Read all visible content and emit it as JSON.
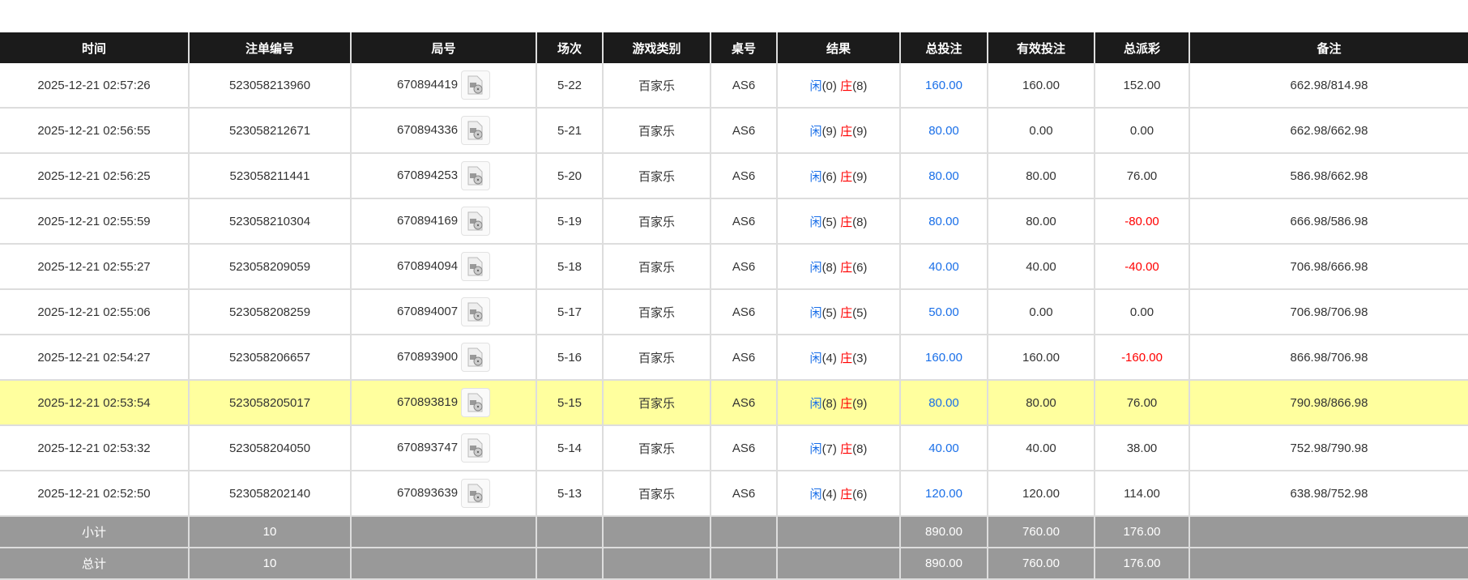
{
  "headers": [
    "时间",
    "注单编号",
    "局号",
    "场次",
    "游戏类别",
    "桌号",
    "结果",
    "总投注",
    "有效投注",
    "总派彩",
    "备注"
  ],
  "rows": [
    {
      "time": "2025-12-21 02:57:26",
      "bet_no": "523058213960",
      "round": "670894419",
      "session": "5-22",
      "game": "百家乐",
      "table": "AS6",
      "player_label": "闲",
      "player": "(0)",
      "banker_label": "庄",
      "banker": "(8)",
      "total_bet": "160.00",
      "valid_bet": "160.00",
      "payout": "152.00",
      "payout_negative": false,
      "note": "662.98/814.98"
    },
    {
      "time": "2025-12-21 02:56:55",
      "bet_no": "523058212671",
      "round": "670894336",
      "session": "5-21",
      "game": "百家乐",
      "table": "AS6",
      "player_label": "闲",
      "player": "(9)",
      "banker_label": "庄",
      "banker": "(9)",
      "total_bet": "80.00",
      "valid_bet": "0.00",
      "payout": "0.00",
      "payout_negative": false,
      "note": "662.98/662.98"
    },
    {
      "time": "2025-12-21 02:56:25",
      "bet_no": "523058211441",
      "round": "670894253",
      "session": "5-20",
      "game": "百家乐",
      "table": "AS6",
      "player_label": "闲",
      "player": "(6)",
      "banker_label": "庄",
      "banker": "(9)",
      "total_bet": "80.00",
      "valid_bet": "80.00",
      "payout": "76.00",
      "payout_negative": false,
      "note": "586.98/662.98"
    },
    {
      "time": "2025-12-21 02:55:59",
      "bet_no": "523058210304",
      "round": "670894169",
      "session": "5-19",
      "game": "百家乐",
      "table": "AS6",
      "player_label": "闲",
      "player": "(5)",
      "banker_label": "庄",
      "banker": "(8)",
      "total_bet": "80.00",
      "valid_bet": "80.00",
      "payout": "-80.00",
      "payout_negative": true,
      "note": "666.98/586.98"
    },
    {
      "time": "2025-12-21 02:55:27",
      "bet_no": "523058209059",
      "round": "670894094",
      "session": "5-18",
      "game": "百家乐",
      "table": "AS6",
      "player_label": "闲",
      "player": "(8)",
      "banker_label": "庄",
      "banker": "(6)",
      "total_bet": "40.00",
      "valid_bet": "40.00",
      "payout": "-40.00",
      "payout_negative": true,
      "note": "706.98/666.98"
    },
    {
      "time": "2025-12-21 02:55:06",
      "bet_no": "523058208259",
      "round": "670894007",
      "session": "5-17",
      "game": "百家乐",
      "table": "AS6",
      "player_label": "闲",
      "player": "(5)",
      "banker_label": "庄",
      "banker": "(5)",
      "total_bet": "50.00",
      "valid_bet": "0.00",
      "payout": "0.00",
      "payout_negative": false,
      "note": "706.98/706.98"
    },
    {
      "time": "2025-12-21 02:54:27",
      "bet_no": "523058206657",
      "round": "670893900",
      "session": "5-16",
      "game": "百家乐",
      "table": "AS6",
      "player_label": "闲",
      "player": "(4)",
      "banker_label": "庄",
      "banker": "(3)",
      "total_bet": "160.00",
      "valid_bet": "160.00",
      "payout": "-160.00",
      "payout_negative": true,
      "note": "866.98/706.98"
    },
    {
      "time": "2025-12-21 02:53:54",
      "bet_no": "523058205017",
      "round": "670893819",
      "session": "5-15",
      "game": "百家乐",
      "table": "AS6",
      "player_label": "闲",
      "player": "(8)",
      "banker_label": "庄",
      "banker": "(9)",
      "total_bet": "80.00",
      "valid_bet": "80.00",
      "payout": "76.00",
      "payout_negative": false,
      "note": "790.98/866.98",
      "highlighted": true
    },
    {
      "time": "2025-12-21 02:53:32",
      "bet_no": "523058204050",
      "round": "670893747",
      "session": "5-14",
      "game": "百家乐",
      "table": "AS6",
      "player_label": "闲",
      "player": "(7)",
      "banker_label": "庄",
      "banker": "(8)",
      "total_bet": "40.00",
      "valid_bet": "40.00",
      "payout": "38.00",
      "payout_negative": false,
      "note": "752.98/790.98"
    },
    {
      "time": "2025-12-21 02:52:50",
      "bet_no": "523058202140",
      "round": "670893639",
      "session": "5-13",
      "game": "百家乐",
      "table": "AS6",
      "player_label": "闲",
      "player": "(4)",
      "banker_label": "庄",
      "banker": "(6)",
      "total_bet": "120.00",
      "valid_bet": "120.00",
      "payout": "114.00",
      "payout_negative": false,
      "note": "638.98/752.98"
    }
  ],
  "summary": [
    {
      "label": "小计",
      "count": "10",
      "total_bet": "890.00",
      "valid_bet": "760.00",
      "payout": "176.00"
    },
    {
      "label": "总计",
      "count": "10",
      "total_bet": "890.00",
      "valid_bet": "760.00",
      "payout": "176.00"
    }
  ],
  "colors": {
    "header_bg": "#1b1b1b",
    "highlight": "#ffff9e",
    "summary_bg": "#999999",
    "blue": "#1a6fe8",
    "red": "#ff0000"
  }
}
